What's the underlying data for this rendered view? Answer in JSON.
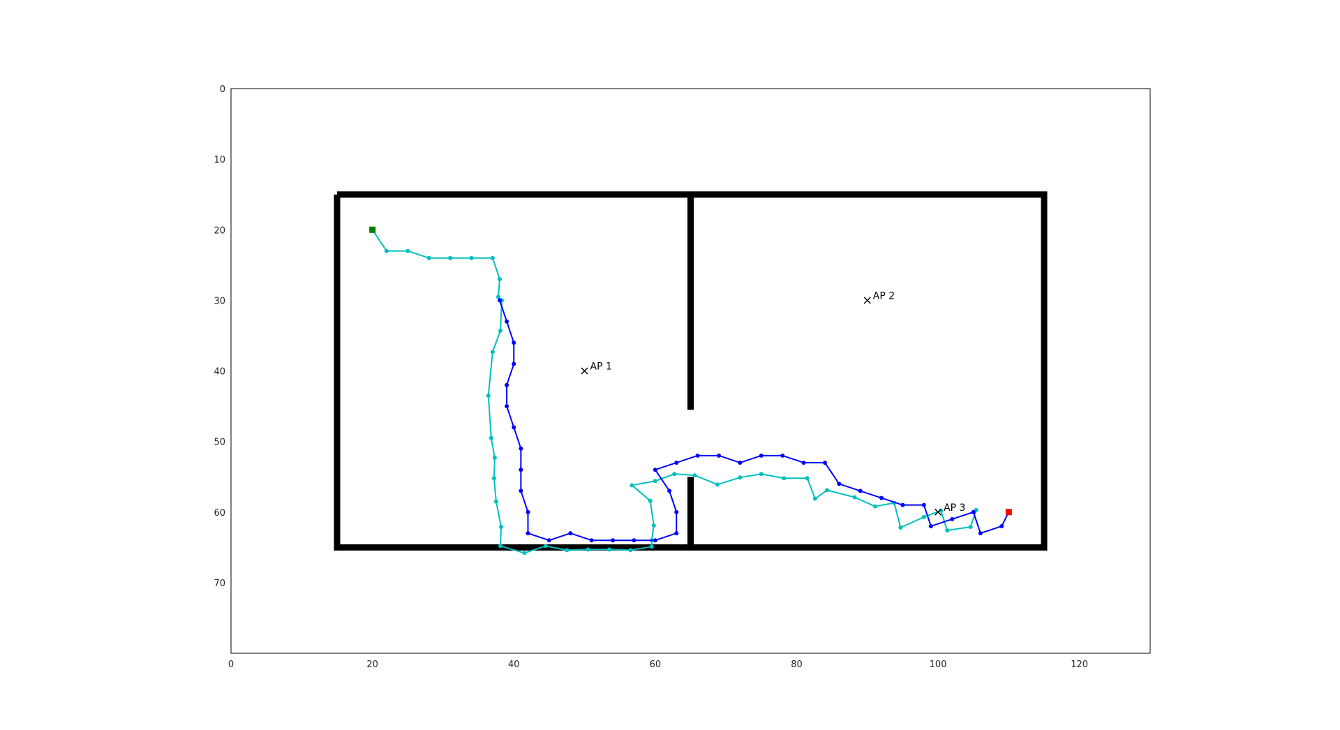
{
  "chart_data": {
    "type": "line",
    "title": "",
    "xlabel": "",
    "ylabel": "",
    "xlim": [
      0,
      130
    ],
    "ylim": [
      80,
      0
    ],
    "y_inverted": true,
    "grid": false,
    "xticks": [
      0,
      20,
      40,
      60,
      80,
      100,
      120
    ],
    "yticks": [
      0,
      10,
      20,
      30,
      40,
      50,
      60,
      70
    ],
    "walls": [
      {
        "x": [
          15,
          115,
          115,
          15,
          15
        ],
        "y": [
          15,
          15,
          65,
          65,
          15
        ]
      },
      {
        "x": [
          65,
          65
        ],
        "y": [
          15,
          45.5
        ]
      },
      {
        "x": [
          65,
          65
        ],
        "y": [
          55,
          65
        ]
      }
    ],
    "access_points": [
      {
        "label": "AP 1",
        "x": 50,
        "y": 40
      },
      {
        "label": "AP 2",
        "x": 90,
        "y": 30
      },
      {
        "label": "AP 3",
        "x": 100,
        "y": 60
      }
    ],
    "start": {
      "x": 20,
      "y": 20,
      "color": "#008000"
    },
    "goal": {
      "x": 110,
      "y": 60,
      "color": "#ff0000"
    },
    "series": [
      {
        "color": "#00bfbf",
        "x": [
          20,
          22,
          25,
          28,
          31,
          34,
          37,
          38,
          37.8,
          38.3,
          38.1,
          37,
          36.4,
          36.8,
          37.3,
          37.2,
          37.5,
          38.2,
          38.1,
          41.5,
          44.5,
          47.5,
          50.5,
          53.5,
          56.5,
          59.5,
          59.5,
          59.8,
          59.3,
          56.7,
          60,
          62.7,
          65.6,
          68.8,
          72,
          75,
          78.2,
          81.5,
          82.6,
          84.3,
          88.2,
          91.1,
          93.8,
          94.7,
          98,
          100.4,
          101.3,
          104.6,
          105.4
        ],
        "y": [
          20,
          23,
          23,
          24,
          24,
          24,
          24,
          27,
          29.5,
          30,
          34.3,
          37.3,
          43.5,
          49.5,
          52.3,
          55.2,
          58.5,
          62.1,
          64.8,
          65.8,
          64.8,
          65.4,
          65.3,
          65.3,
          65.4,
          64.9,
          64,
          61.9,
          58.4,
          56.2,
          55.6,
          54.6,
          54.8,
          56.1,
          55.1,
          54.6,
          55.2,
          55.2,
          58.1,
          56.9,
          57.9,
          59.2,
          58.7,
          62.2,
          60.7,
          59.8,
          62.6,
          62.1,
          59.7
        ]
      },
      {
        "color": "#0000ff",
        "x": [
          38,
          39,
          40,
          40,
          39,
          39,
          40,
          41,
          41,
          41,
          42,
          42,
          45,
          48,
          51,
          54,
          57,
          60,
          63,
          63,
          62,
          60,
          63,
          66,
          69,
          72,
          75,
          78,
          81,
          84,
          86,
          89,
          92,
          95,
          98,
          99,
          102,
          105,
          106,
          109,
          110
        ],
        "y": [
          30,
          33,
          36,
          39,
          42,
          45,
          48,
          51,
          54,
          57,
          60,
          63,
          64,
          63,
          64,
          64,
          64,
          64,
          63,
          60,
          57,
          54,
          53,
          52,
          52,
          53,
          52,
          52,
          53,
          53,
          56,
          57,
          58,
          59,
          59,
          62,
          61,
          60,
          63,
          62,
          60
        ]
      }
    ]
  }
}
